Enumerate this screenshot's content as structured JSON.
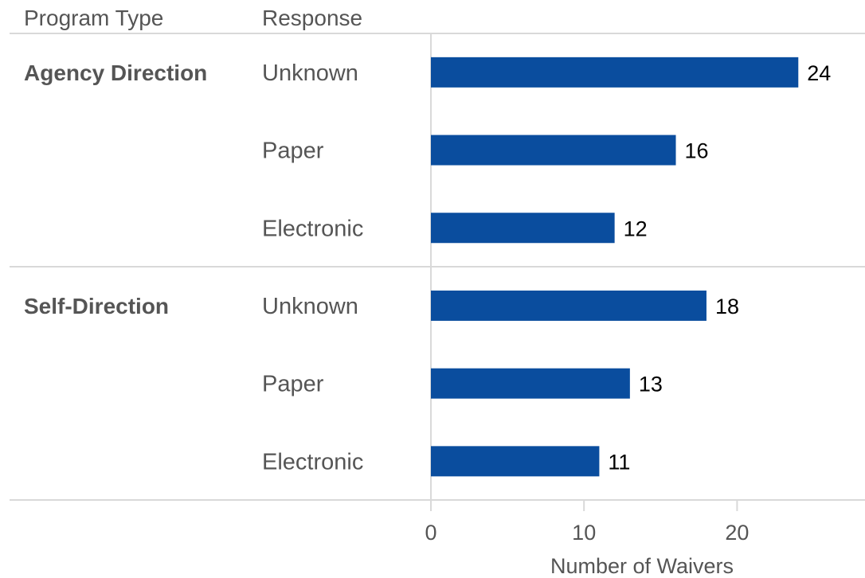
{
  "chart_data": {
    "type": "bar",
    "orientation": "horizontal",
    "column_headers": {
      "group": "Program Type",
      "category": "Response"
    },
    "groups": [
      {
        "name": "Agency Direction",
        "categories": [
          "Unknown",
          "Paper",
          "Electronic"
        ],
        "values": [
          24,
          16,
          12
        ]
      },
      {
        "name": "Self-Direction",
        "categories": [
          "Unknown",
          "Paper",
          "Electronic"
        ],
        "values": [
          18,
          13,
          11
        ]
      }
    ],
    "xlabel": "Number of Waivers",
    "xlim": [
      0,
      28
    ],
    "xticks": [
      0,
      10,
      20
    ],
    "grid": false,
    "legend": "none",
    "bar_color": "#0a4d9e"
  }
}
